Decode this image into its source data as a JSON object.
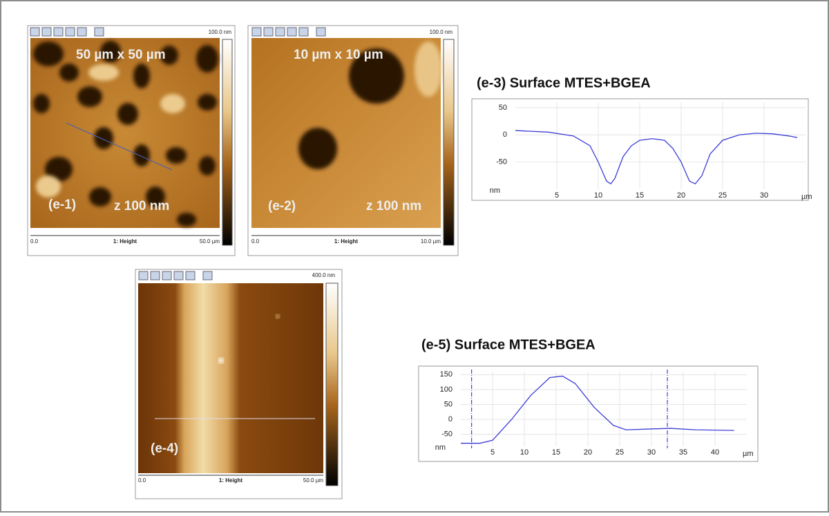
{
  "panels": [
    {
      "label": "(e-1)",
      "size": "50 µm x 50 µm",
      "z": "z 100 nm",
      "scale_max": "100.0 nm",
      "x_start": "0.0",
      "channel": "1: Height",
      "x_end": "50.0 µm"
    },
    {
      "label": "(e-2)",
      "size": "10 µm x 10 µm",
      "z": "z 100 nm",
      "scale_max": "100.0 nm",
      "x_start": "0.0",
      "channel": "1: Height",
      "x_end": "10.0 µm"
    },
    {
      "label": "(e-4)",
      "scale_max": "400.0 nm",
      "x_start": "0.0",
      "channel": "1: Height",
      "x_end": "50.0 µm"
    }
  ],
  "chart_data": [
    {
      "type": "line",
      "title": "(e-3) Surface MTES+BGEA",
      "x": [
        0,
        4,
        7,
        9,
        10,
        11,
        11.5,
        12,
        13,
        14,
        15,
        16.5,
        18,
        19,
        20,
        21,
        21.7,
        22.5,
        23.5,
        25,
        27,
        29,
        31,
        33,
        34
      ],
      "series": [
        {
          "color": "#3b3bd8",
          "values": [
            8,
            5,
            -2,
            -20,
            -50,
            -85,
            -90,
            -80,
            -40,
            -20,
            -10,
            -7,
            -10,
            -25,
            -50,
            -85,
            -90,
            -75,
            -35,
            -10,
            0,
            3,
            2,
            -2,
            -5
          ]
        }
      ],
      "xlim": [
        0,
        35
      ],
      "xticks": [
        5,
        10,
        15,
        20,
        25,
        30
      ],
      "ylim": [
        -100,
        60
      ],
      "yticks": [
        50,
        0,
        -50
      ],
      "y_unit_label": "nm",
      "x_unit_label": "µm",
      "grid": true
    },
    {
      "type": "line",
      "title": "(e-5) Surface MTES+BGEA",
      "x": [
        0,
        3,
        5,
        8,
        11,
        14,
        16,
        18,
        21,
        24,
        26,
        30,
        33,
        37,
        43
      ],
      "series": [
        {
          "color": "#3b3bd8",
          "values": [
            -80,
            -80,
            -70,
            0,
            80,
            140,
            145,
            120,
            40,
            -20,
            -35,
            -32,
            -30,
            -35,
            -37
          ]
        }
      ],
      "xlim": [
        0,
        45
      ],
      "xticks": [
        5,
        10,
        15,
        20,
        25,
        30,
        35,
        40
      ],
      "ylim": [
        -90,
        160
      ],
      "yticks": [
        150,
        100,
        50,
        0,
        -50
      ],
      "y_unit_label": "nm",
      "x_unit_label": "µm",
      "grid": true,
      "cursors": [
        1.7,
        32.5
      ],
      "cursor_color": "#3b3bd8"
    }
  ]
}
